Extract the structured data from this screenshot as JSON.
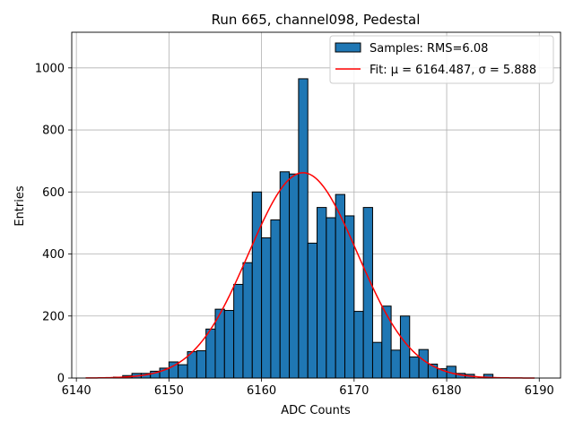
{
  "chart_data": {
    "type": "bar",
    "title": "Run 665, channel098, Pedestal",
    "xlabel": "ADC Counts",
    "ylabel": "Entries",
    "xlim": [
      6139.5,
      6192.3
    ],
    "ylim": [
      0,
      1115
    ],
    "xticks": [
      6140,
      6150,
      6160,
      6170,
      6180,
      6190
    ],
    "yticks": [
      0,
      200,
      400,
      600,
      800,
      1000
    ],
    "grid": true,
    "legend_position": "top-right",
    "series": [
      {
        "name": "Samples: RMS=6.08",
        "kind": "histogram",
        "color": "#1f77b4",
        "edge_color": "#000000",
        "bin_edges": [
          6144.0,
          6145.0,
          6146.0,
          6147.0,
          6148.0,
          6149.0,
          6150.0,
          6151.0,
          6152.0,
          6153.0,
          6154.0,
          6155.0,
          6156.0,
          6157.0,
          6158.0,
          6159.0,
          6160.0,
          6161.0,
          6162.0,
          6163.0,
          6164.0,
          6165.0,
          6166.0,
          6167.0,
          6168.0,
          6169.0,
          6170.0,
          6171.0,
          6172.0,
          6173.0,
          6174.0,
          6175.0,
          6176.0,
          6177.0,
          6178.0,
          6179.0,
          6180.0,
          6181.0,
          6182.0,
          6183.0,
          6184.0,
          6185.0
        ],
        "counts": [
          3,
          8,
          15,
          15,
          22,
          32,
          52,
          43,
          85,
          88,
          158,
          222,
          218,
          302,
          372,
          600,
          452,
          510,
          665,
          658,
          965,
          435,
          550,
          517,
          592,
          523,
          215,
          550,
          115,
          232,
          90,
          200,
          68,
          92,
          45,
          30,
          38,
          15,
          12,
          0,
          12
        ]
      },
      {
        "name": "Fit: μ = 6164.487, σ = 5.888",
        "kind": "gaussian-fit",
        "color": "#ff0000",
        "mu": 6164.487,
        "sigma": 5.888,
        "amplitude": 662,
        "x_range": [
          6141.0,
          6189.5
        ]
      }
    ]
  }
}
